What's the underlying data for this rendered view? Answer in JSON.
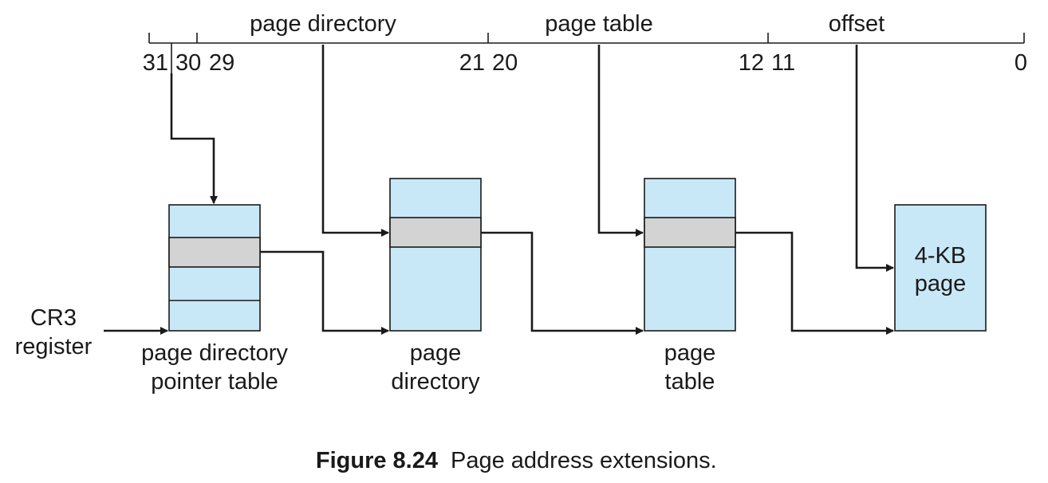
{
  "address_fields": {
    "page_directory": "page directory",
    "page_table": "page table",
    "offset": "offset"
  },
  "bit_labels": {
    "b31": "31",
    "b30": "30",
    "b29": "29",
    "b21": "21",
    "b20": "20",
    "b12": "12",
    "b11": "11",
    "b0": "0"
  },
  "register": {
    "line1": "CR3",
    "line2": "register"
  },
  "tables": {
    "pdpt": {
      "line1": "page directory",
      "line2": "pointer table"
    },
    "pd": {
      "line1": "page",
      "line2": "directory"
    },
    "pt": {
      "line1": "page",
      "line2": "table"
    },
    "page": {
      "line1": "4-KB",
      "line2": "page"
    }
  },
  "caption": {
    "number": "Figure 8.24",
    "title": "Page address extensions."
  },
  "colors": {
    "table_fill": "#c9e8f7",
    "entry_fill": "#d3d3d3",
    "stroke": "#1a1a1a"
  }
}
